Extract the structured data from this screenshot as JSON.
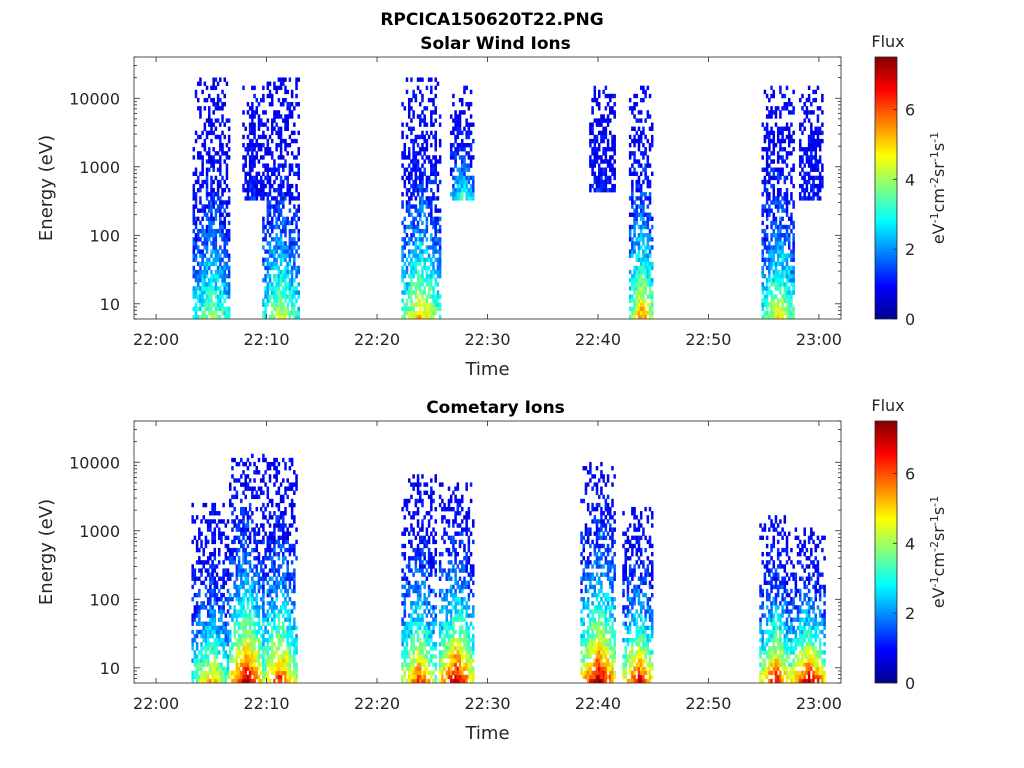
{
  "figure": {
    "title": "RPCICA150620T22.PNG"
  },
  "colormap": {
    "name": "jet",
    "stops": [
      "#00008f",
      "#0000ff",
      "#0080ff",
      "#00ffff",
      "#80ff80",
      "#ffff00",
      "#ff8000",
      "#ff0000",
      "#800000"
    ]
  },
  "chart_data": [
    {
      "type": "heatmap",
      "title": "Solar Wind Ions",
      "xlabel": "Time",
      "ylabel": "Energy (eV)",
      "x_ticks": [
        "22:00",
        "22:10",
        "22:20",
        "22:30",
        "22:40",
        "22:50",
        "23:00"
      ],
      "xlim": [
        "22:00",
        "23:00"
      ],
      "y_ticks": [
        "10",
        "100",
        "1000",
        "10000"
      ],
      "y_scale": "log",
      "ylim": [
        6,
        40000
      ],
      "colorbar": {
        "title": "Flux",
        "label": "eV-1cm-2sr-1s-1",
        "ticks": [
          "0",
          "2",
          "4",
          "6"
        ],
        "range": [
          0,
          7.5
        ]
      },
      "bursts": [
        {
          "start": "22:03.3",
          "end": "22:06.6",
          "emin": 6,
          "emax": 20000,
          "core_flux": 4.2
        },
        {
          "start": "22:07.8",
          "end": "22:09.6",
          "emin": 300,
          "emax": 15000,
          "core_flux": 1.3
        },
        {
          "start": "22:09.6",
          "end": "22:12.8",
          "emin": 6,
          "emax": 18000,
          "core_flux": 4.5
        },
        {
          "start": "22:22.2",
          "end": "22:25.6",
          "emin": 6,
          "emax": 20000,
          "core_flux": 5.2
        },
        {
          "start": "22:26.6",
          "end": "22:28.6",
          "emin": 300,
          "emax": 15000,
          "core_flux": 3.6
        },
        {
          "start": "22:39.2",
          "end": "22:41.6",
          "emin": 400,
          "emax": 15000,
          "core_flux": 1.3
        },
        {
          "start": "22:42.8",
          "end": "22:45.0",
          "emin": 6,
          "emax": 15000,
          "core_flux": 5.6
        },
        {
          "start": "22:54.8",
          "end": "22:57.8",
          "emin": 6,
          "emax": 15000,
          "core_flux": 4.8
        },
        {
          "start": "22:58.2",
          "end": "23:00.4",
          "emin": 300,
          "emax": 15000,
          "core_flux": 1.3
        }
      ]
    },
    {
      "type": "heatmap",
      "title": "Cometary Ions",
      "xlabel": "Time",
      "ylabel": "Energy (eV)",
      "x_ticks": [
        "22:00",
        "22:10",
        "22:20",
        "22:30",
        "22:40",
        "22:50",
        "23:00"
      ],
      "xlim": [
        "22:00",
        "23:00"
      ],
      "y_ticks": [
        "10",
        "100",
        "1000",
        "10000"
      ],
      "y_scale": "log",
      "ylim": [
        6,
        40000
      ],
      "colorbar": {
        "title": "Flux",
        "label": "eV-1cm-2sr-1s-1",
        "ticks": [
          "0",
          "2",
          "4",
          "6"
        ],
        "range": [
          0,
          7.5
        ]
      },
      "bursts": [
        {
          "start": "22:03.2",
          "end": "22:06.6",
          "emin": 6,
          "emax": 2500,
          "core_flux": 5.2
        },
        {
          "start": "22:06.6",
          "end": "22:09.6",
          "emin": 6,
          "emax": 13000,
          "core_flux": 7.2
        },
        {
          "start": "22:09.6",
          "end": "22:12.6",
          "emin": 6,
          "emax": 11000,
          "core_flux": 6.4
        },
        {
          "start": "22:22.2",
          "end": "22:25.2",
          "emin": 6,
          "emax": 6000,
          "core_flux": 6.2
        },
        {
          "start": "22:25.6",
          "end": "22:28.6",
          "emin": 6,
          "emax": 5000,
          "core_flux": 7.3
        },
        {
          "start": "22:38.4",
          "end": "22:41.6",
          "emin": 6,
          "emax": 10000,
          "core_flux": 7.4
        },
        {
          "start": "22:42.2",
          "end": "22:45.0",
          "emin": 6,
          "emax": 2000,
          "core_flux": 6.9
        },
        {
          "start": "22:54.6",
          "end": "22:57.4",
          "emin": 6,
          "emax": 1500,
          "core_flux": 6.8
        },
        {
          "start": "22:57.4",
          "end": "23:00.6",
          "emin": 6,
          "emax": 1000,
          "core_flux": 7.2
        }
      ]
    }
  ]
}
